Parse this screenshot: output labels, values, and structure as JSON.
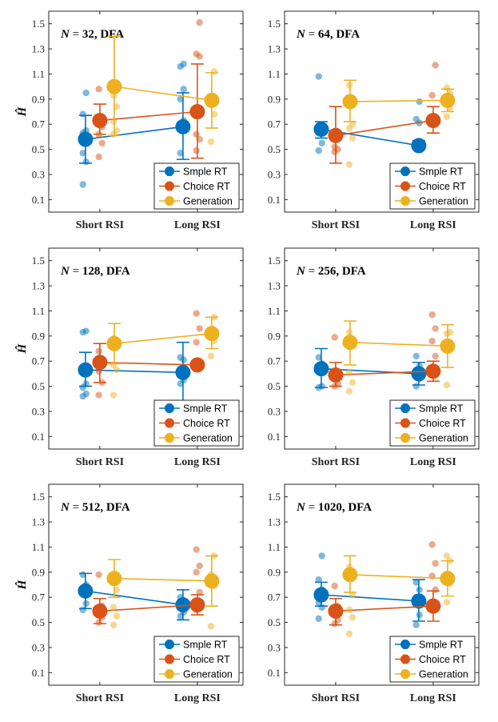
{
  "chart_data": {
    "type": "scatter",
    "ylabel": "Ĥ",
    "categories": [
      "Short RSI",
      "Long RSI"
    ],
    "yticks": [
      0.1,
      0.3,
      0.5,
      0.7,
      0.9,
      1.1,
      1.3,
      1.5
    ],
    "ylim": [
      0,
      1.6
    ],
    "legend": {
      "placement": "bottom-right",
      "entries": [
        "Smple RT",
        "Choice RT",
        "Generation"
      ]
    },
    "colors": {
      "Smple RT": "#0072BD",
      "Choice RT": "#D95319",
      "Generation": "#EDB120"
    },
    "panels": [
      {
        "n": "32",
        "title_suffix": ", DFA",
        "series": [
          {
            "name": "Smple RT",
            "means": [
              0.58,
              0.68
            ],
            "err_low": [
              0.39,
              0.42
            ],
            "err_high": [
              0.77,
              0.95
            ],
            "points": [
              [
                0.22,
                0.4,
                0.47,
                0.6,
                0.63,
                0.65,
                0.78,
                0.95
              ],
              [
                0.47,
                0.73,
                0.9,
                0.98,
                1.16,
                1.18
              ]
            ]
          },
          {
            "name": "Choice RT",
            "means": [
              0.73,
              0.8
            ],
            "err_low": [
              0.62,
              0.43
            ],
            "err_high": [
              0.86,
              1.18
            ],
            "points": [
              [
                0.44,
                0.55,
                0.62,
                0.68,
                0.72,
                0.76,
                0.98
              ],
              [
                0.49,
                0.58,
                0.62,
                1.24,
                1.26,
                1.51
              ]
            ]
          },
          {
            "name": "Generation",
            "means": [
              1.0,
              0.89
            ],
            "err_low": [
              0.61,
              0.67
            ],
            "err_high": [
              1.4,
              1.11
            ],
            "points": [
              [
                0.62,
                0.65,
                0.72,
                0.84,
                0.93,
                1.0
              ],
              [
                0.56,
                0.78,
                0.88,
                1.12
              ]
            ]
          }
        ]
      },
      {
        "n": "64",
        "title_suffix": ", DFA",
        "series": [
          {
            "name": "Smple RT",
            "means": [
              0.66,
              0.53
            ],
            "err_low": [
              0.59,
              0.5
            ],
            "err_high": [
              0.72,
              0.57
            ],
            "points": [
              [
                0.49,
                0.55,
                0.63,
                0.68,
                1.08
              ],
              [
                0.55,
                0.71,
                0.74,
                0.88
              ]
            ]
          },
          {
            "name": "Choice RT",
            "means": [
              0.61,
              0.73
            ],
            "err_low": [
              0.39,
              0.63
            ],
            "err_high": [
              0.84,
              0.84
            ],
            "points": [
              [
                0.48,
                0.5,
                0.52,
                0.6,
                0.62
              ],
              [
                0.7,
                0.75,
                0.93,
                1.17
              ]
            ]
          },
          {
            "name": "Generation",
            "means": [
              0.88,
              0.89
            ],
            "err_low": [
              0.72,
              0.8
            ],
            "err_high": [
              1.05,
              0.98
            ],
            "points": [
              [
                0.38,
                0.59,
                0.67,
                0.7,
                1.01
              ],
              [
                0.76,
                0.82,
                0.89,
                0.95,
                0.99
              ]
            ]
          }
        ]
      },
      {
        "n": "128",
        "title_suffix": ", DFA",
        "series": [
          {
            "name": "Smple RT",
            "means": [
              0.63,
              0.61
            ],
            "err_low": [
              0.5,
              0.38
            ],
            "err_high": [
              0.77,
              0.85
            ],
            "points": [
              [
                0.42,
                0.44,
                0.49,
                0.52,
                0.93,
                0.94
              ],
              [
                0.52,
                0.55,
                0.63,
                0.71,
                0.73
              ]
            ]
          },
          {
            "name": "Choice RT",
            "means": [
              0.69,
              0.67
            ],
            "err_low": [
              0.53,
              0.64
            ],
            "err_high": [
              0.84,
              0.7
            ],
            "points": [
              [
                0.43,
                0.53,
                0.62,
                0.72,
                0.78
              ],
              [
                0.65,
                0.67,
                0.85,
                0.96,
                1.08
              ]
            ]
          },
          {
            "name": "Generation",
            "means": [
              0.84,
              0.92
            ],
            "err_low": [
              0.68,
              0.8
            ],
            "err_high": [
              1.0,
              1.05
            ],
            "points": [
              [
                0.43,
                0.63,
                0.67,
                0.85,
                0.88
              ],
              [
                0.74,
                0.86,
                0.9,
                1.05
              ]
            ]
          }
        ]
      },
      {
        "n": "256",
        "title_suffix": ", DFA",
        "series": [
          {
            "name": "Smple RT",
            "means": [
              0.64,
              0.6
            ],
            "err_low": [
              0.49,
              0.51
            ],
            "err_high": [
              0.8,
              0.69
            ],
            "points": [
              [
                0.49,
                0.5,
                0.62,
                0.68,
                0.73
              ],
              [
                0.5,
                0.56,
                0.63,
                0.66,
                0.74
              ]
            ]
          },
          {
            "name": "Choice RT",
            "means": [
              0.59,
              0.62
            ],
            "err_low": [
              0.5,
              0.54
            ],
            "err_high": [
              0.69,
              0.7
            ],
            "points": [
              [
                0.5,
                0.52,
                0.57,
                0.6,
                0.89
              ],
              [
                0.63,
                0.74,
                0.86,
                0.96,
                1.07
              ]
            ]
          },
          {
            "name": "Generation",
            "means": [
              0.85,
              0.82
            ],
            "err_low": [
              0.67,
              0.65
            ],
            "err_high": [
              1.02,
              0.99
            ],
            "points": [
              [
                0.46,
                0.53,
                0.61,
                0.83,
                0.93
              ],
              [
                0.51,
                0.82,
                0.92,
                0.93
              ]
            ]
          }
        ]
      },
      {
        "n": "512",
        "title_suffix": ", DFA",
        "series": [
          {
            "name": "Smple RT",
            "means": [
              0.75,
              0.64
            ],
            "err_low": [
              0.61,
              0.52
            ],
            "err_high": [
              0.89,
              0.76
            ],
            "points": [
              [
                0.6,
                0.65,
                0.75,
                0.8,
                0.88
              ],
              [
                0.55,
                0.58,
                0.62,
                0.64,
                0.7
              ]
            ]
          },
          {
            "name": "Choice RT",
            "means": [
              0.59,
              0.64
            ],
            "err_low": [
              0.49,
              0.56
            ],
            "err_high": [
              0.69,
              0.72
            ],
            "points": [
              [
                0.5,
                0.54,
                0.57,
                0.63,
                0.88
              ],
              [
                0.6,
                0.74,
                0.9,
                0.95,
                1.08
              ]
            ]
          },
          {
            "name": "Generation",
            "means": [
              0.85,
              0.83
            ],
            "err_low": [
              0.7,
              0.63
            ],
            "err_high": [
              1.0,
              1.03
            ],
            "points": [
              [
                0.48,
                0.55,
                0.62,
                0.76,
                0.88
              ],
              [
                0.47,
                0.79,
                0.88,
                1.03
              ]
            ]
          }
        ]
      },
      {
        "n": "1020",
        "title_suffix": ", DFA",
        "series": [
          {
            "name": "Smple RT",
            "means": [
              0.72,
              0.67
            ],
            "err_low": [
              0.63,
              0.51
            ],
            "err_high": [
              0.82,
              0.84
            ],
            "points": [
              [
                0.53,
                0.62,
                0.66,
                0.76,
                0.84,
                1.03
              ],
              [
                0.48,
                0.56,
                0.7,
                0.76,
                0.82
              ]
            ]
          },
          {
            "name": "Choice RT",
            "means": [
              0.59,
              0.63
            ],
            "err_low": [
              0.48,
              0.51
            ],
            "err_high": [
              0.69,
              0.75
            ],
            "points": [
              [
                0.49,
                0.52,
                0.57,
                0.63,
                0.79
              ],
              [
                0.62,
                0.76,
                0.87,
                0.97,
                1.12
              ]
            ]
          },
          {
            "name": "Generation",
            "means": [
              0.88,
              0.85
            ],
            "err_low": [
              0.74,
              0.71
            ],
            "err_high": [
              1.03,
              0.99
            ],
            "points": [
              [
                0.41,
                0.54,
                0.6,
                0.72,
                0.94
              ],
              [
                0.66,
                0.81,
                0.87,
                0.99,
                1.03
              ]
            ]
          }
        ]
      }
    ]
  }
}
